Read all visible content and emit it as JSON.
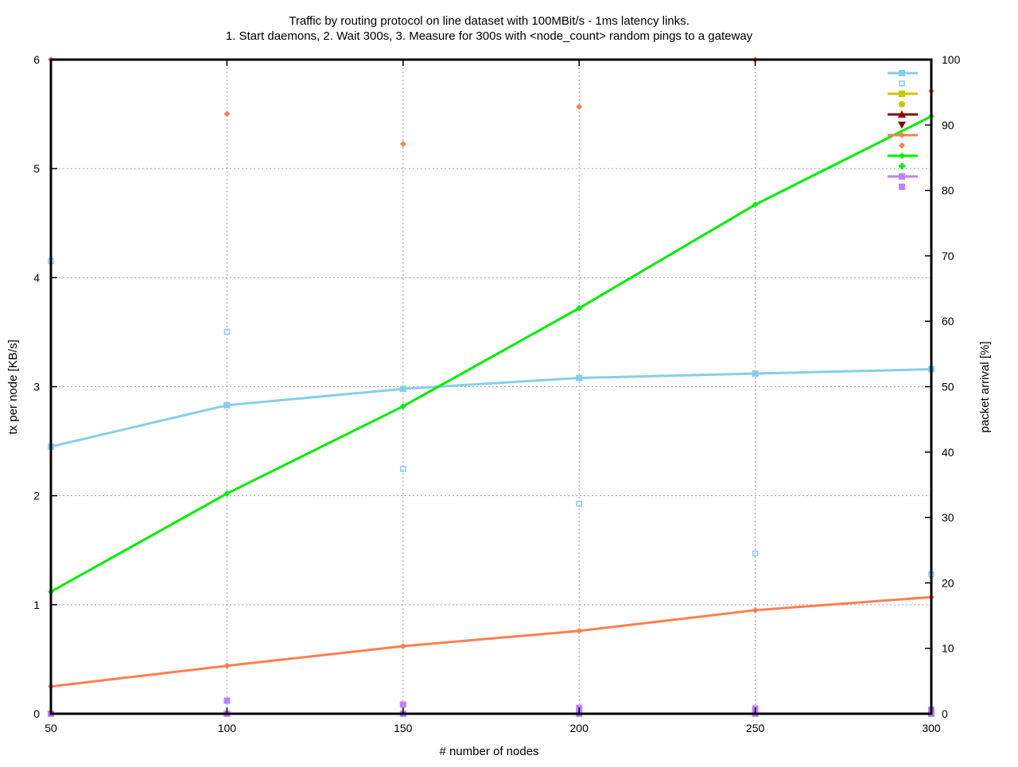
{
  "chart_data": {
    "type": "line",
    "title": "Traffic by routing protocol on line dataset with 100MBit/s - 1ms latency links.",
    "subtitle": "1. Start daemons, 2. Wait 300s, 3. Measure for 300s with <node_count> random pings to a gateway",
    "xlabel": "# number of nodes",
    "ylabel": "tx per node [KB/s]",
    "y2label": "packet arrival [%]",
    "x_ticks": [
      "50",
      "100",
      "150",
      "200",
      "250",
      "300"
    ],
    "y_ticks": [
      "0",
      "1",
      "2",
      "3",
      "4",
      "5",
      "6"
    ],
    "y2_ticks": [
      "0",
      "10",
      "20",
      "30",
      "40",
      "50",
      "60",
      "70",
      "80",
      "90",
      "100"
    ],
    "xlim": [
      50,
      300
    ],
    "ylim": [
      0,
      6
    ],
    "y2lim": [
      0,
      100
    ],
    "grid": true,
    "legend_position": "top-right",
    "series": [
      {
        "color": "#87ceeb",
        "style": "line",
        "marker": "filled-square",
        "axis": "y1",
        "x": [
          50,
          100,
          150,
          200,
          250,
          300
        ],
        "y": [
          2.45,
          2.83,
          2.98,
          3.08,
          3.12,
          3.16
        ]
      },
      {
        "color": "#87ceeb",
        "style": "points",
        "marker": "open-square",
        "axis": "y2",
        "x": [
          50,
          100,
          150,
          200,
          250,
          300
        ],
        "y": [
          69.2,
          58.4,
          37.4,
          32.1,
          24.5,
          21.3
        ]
      },
      {
        "color": "#c8c800",
        "style": "line",
        "marker": "filled-square",
        "axis": "y1",
        "x": [],
        "y": []
      },
      {
        "color": "#c8c800",
        "style": "points",
        "marker": "filled-circle",
        "axis": "y2",
        "x": [],
        "y": []
      },
      {
        "color": "#8b0000",
        "style": "line",
        "marker": "filled-triangle",
        "axis": "y1",
        "x": [],
        "y": []
      },
      {
        "color": "#8b0000",
        "style": "points",
        "marker": "filled-triangle-down",
        "axis": "y2",
        "x": [],
        "y": []
      },
      {
        "color": "#ff7f50",
        "style": "line",
        "marker": "filled-diamond",
        "axis": "y1",
        "x": [
          50,
          100,
          150,
          200,
          250,
          300
        ],
        "y": [
          0.25,
          0.44,
          0.62,
          0.76,
          0.95,
          1.07
        ]
      },
      {
        "color": "#ff7f50",
        "style": "points",
        "marker": "filled-diamond",
        "axis": "y2",
        "x": [
          50,
          100,
          150,
          200,
          250,
          300
        ],
        "y": [
          100,
          91.7,
          87.1,
          92.8,
          100,
          95.2
        ]
      },
      {
        "color": "#00ee00",
        "style": "line",
        "marker": "filled-diamond",
        "axis": "y1",
        "x": [
          50,
          100,
          150,
          200,
          250,
          300
        ],
        "y": [
          1.12,
          2.02,
          2.82,
          3.72,
          4.67,
          5.48
        ]
      },
      {
        "color": "#00ee00",
        "style": "points",
        "marker": "plus",
        "axis": "y2",
        "x": [],
        "y": []
      },
      {
        "color": "#c080ff",
        "style": "line",
        "marker": "filled-square",
        "axis": "y1",
        "x": [
          50,
          100,
          150,
          200,
          250,
          300
        ],
        "y": [
          0.0,
          0.0,
          0.0,
          0.0,
          0.0,
          0.0
        ]
      },
      {
        "color": "#c080ff",
        "style": "points",
        "marker": "filled-square",
        "axis": "y2",
        "x": [
          50,
          100,
          150,
          200,
          250,
          300
        ],
        "y": [
          0,
          2.0,
          1.4,
          0.9,
          0.8,
          0.6
        ]
      }
    ]
  }
}
